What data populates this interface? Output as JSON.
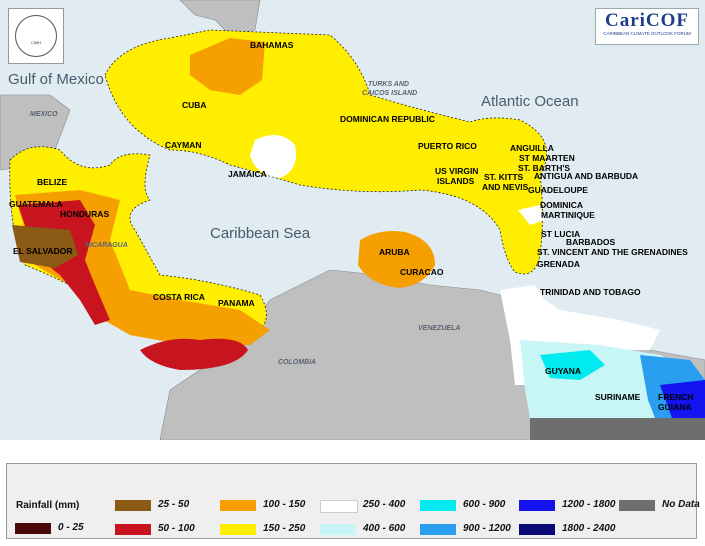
{
  "map": {
    "seas": [
      {
        "id": "gulf",
        "text": "Gulf of Mexico"
      },
      {
        "id": "atlantic",
        "text": "Atlantic Ocean"
      },
      {
        "id": "caribbean",
        "text": "Caribbean Sea"
      }
    ],
    "land_labels": [
      {
        "id": "mexico",
        "text": "MEXICO"
      },
      {
        "id": "turks",
        "text": "TURKS AND"
      },
      {
        "id": "turks2",
        "text": "CAICOS ISLAND"
      },
      {
        "id": "nicaragua",
        "text": "NICARAGUA"
      },
      {
        "id": "venezuela",
        "text": "VENEZUELA"
      },
      {
        "id": "colombia",
        "text": "COLOMBIA"
      }
    ],
    "country_labels": [
      "BAHAMAS",
      "CUBA",
      "DOMINICAN REPUBLIC",
      "CAYMAN",
      "JAMAICA",
      "PUERTO RICO",
      "US VIRGIN",
      "ISLANDS",
      "ST. KITTS",
      "AND NEVIS",
      "ANGUILLA",
      "ST MAARTEN",
      "ST. BARTH'S",
      "ANTIGUA AND BARBUDA",
      "GUADELOUPE",
      "DOMINICA",
      "MARTINIQUE",
      "ST LUCIA",
      "BARBADOS",
      "ST. VINCENT AND THE GRENADINES",
      "GRENADA",
      "TRINIDAD AND TOBAGO",
      "BELIZE",
      "GUATEMALA",
      "HONDURAS",
      "EL SALVADOR",
      "ARUBA",
      "CURACAO",
      "COSTA RICA",
      "PANAMA",
      "GUYANA",
      "SURINAME",
      "FRENCH",
      "GUIANA"
    ]
  },
  "logos": {
    "left_text": "CIMH",
    "right_name": "CariCOF",
    "right_sub": "CARIBBEAN CLIMATE OUTLOOK FORUM"
  },
  "legend": {
    "title": "Rainfall (mm)",
    "items": [
      {
        "label": "0 - 25",
        "color": "#4a0a0a"
      },
      {
        "label": "25 - 50",
        "color": "#8b5a14"
      },
      {
        "label": "50 - 100",
        "color": "#c8141e"
      },
      {
        "label": "100 - 150",
        "color": "#f5a000"
      },
      {
        "label": "150 - 250",
        "color": "#ffee00"
      },
      {
        "label": "250 - 400",
        "color": "#ffffff"
      },
      {
        "label": "400 - 600",
        "color": "#c8f5f5"
      },
      {
        "label": "600 - 900",
        "color": "#00eaf0"
      },
      {
        "label": "900 - 1200",
        "color": "#2a9ff0"
      },
      {
        "label": "1200 - 1800",
        "color": "#1414f0"
      },
      {
        "label": "1800 - 2400",
        "color": "#0a0a78"
      },
      {
        "label": "No Data",
        "color": "#6e6e6e"
      }
    ]
  }
}
